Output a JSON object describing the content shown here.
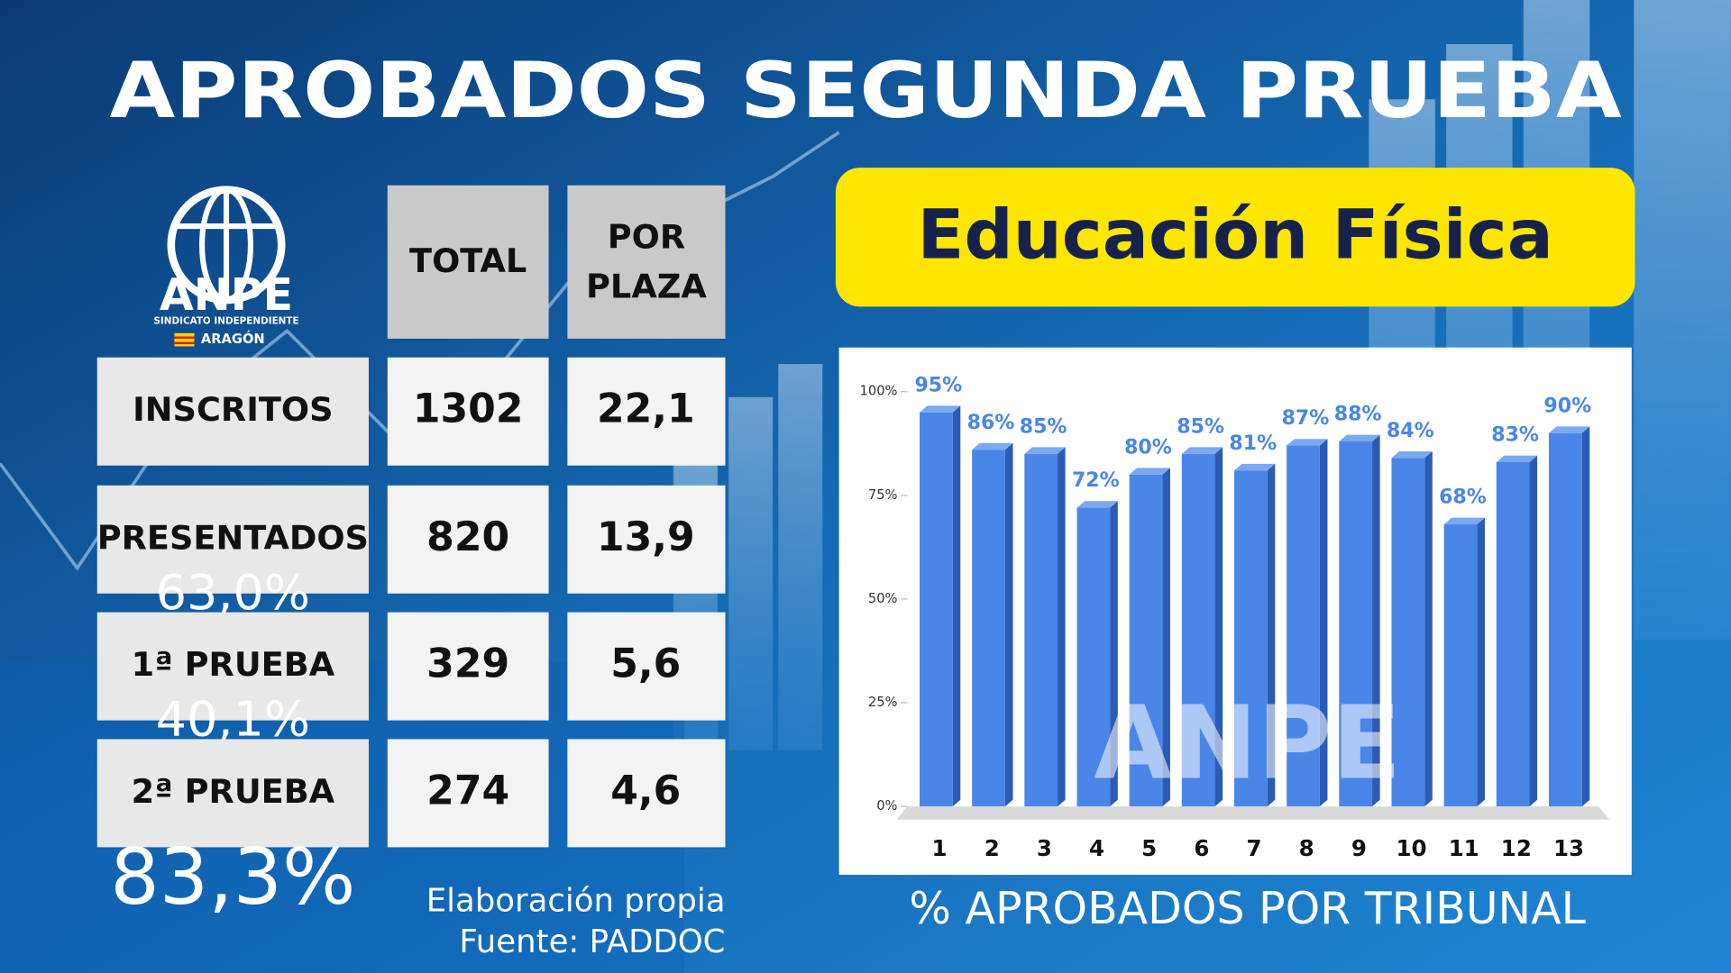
{
  "header": {
    "title": "APROBADOS SEGUNDA PRUEBA",
    "subtitle": "Educación Física"
  },
  "logo": {
    "name": "ANPE",
    "tagline": "SINDICATO INDEPENDIENTE",
    "region": "ARAGÓN"
  },
  "table": {
    "columns": [
      "TOTAL",
      "POR PLAZA"
    ],
    "rows": [
      {
        "label": "INSCRITOS",
        "total": "1302",
        "per_place": "22,1"
      },
      {
        "label": "PRESENTADOS",
        "total": "820",
        "per_place": "13,9",
        "rate": "63,0%"
      },
      {
        "label": "1ª PRUEBA",
        "total": "329",
        "per_place": "5,6",
        "rate": "40,1%"
      },
      {
        "label": "2ª PRUEBA",
        "total": "274",
        "per_place": "4,6",
        "rate": "83,3%"
      }
    ]
  },
  "footer": {
    "credit": "Elaboración propia",
    "source": "Fuente: PADDOC"
  },
  "chart_data": {
    "type": "bar",
    "title": "% APROBADOS POR TRIBUNAL",
    "categories": [
      "1",
      "2",
      "3",
      "4",
      "5",
      "6",
      "7",
      "8",
      "9",
      "10",
      "11",
      "12",
      "13"
    ],
    "values": [
      95,
      86,
      85,
      72,
      80,
      85,
      81,
      87,
      88,
      84,
      68,
      83,
      90
    ],
    "value_labels": [
      "95%",
      "86%",
      "85%",
      "72%",
      "80%",
      "85%",
      "81%",
      "87%",
      "88%",
      "84%",
      "68%",
      "83%",
      "90%"
    ],
    "color": "#4a86e8",
    "ylim": [
      0,
      100
    ],
    "yticks": [
      {
        "value": 0,
        "label": "0%"
      },
      {
        "value": 25,
        "label": "25%"
      },
      {
        "value": 50,
        "label": "50%"
      },
      {
        "value": 75,
        "label": "75%"
      },
      {
        "value": 100,
        "label": "100%"
      }
    ],
    "grid": false
  }
}
